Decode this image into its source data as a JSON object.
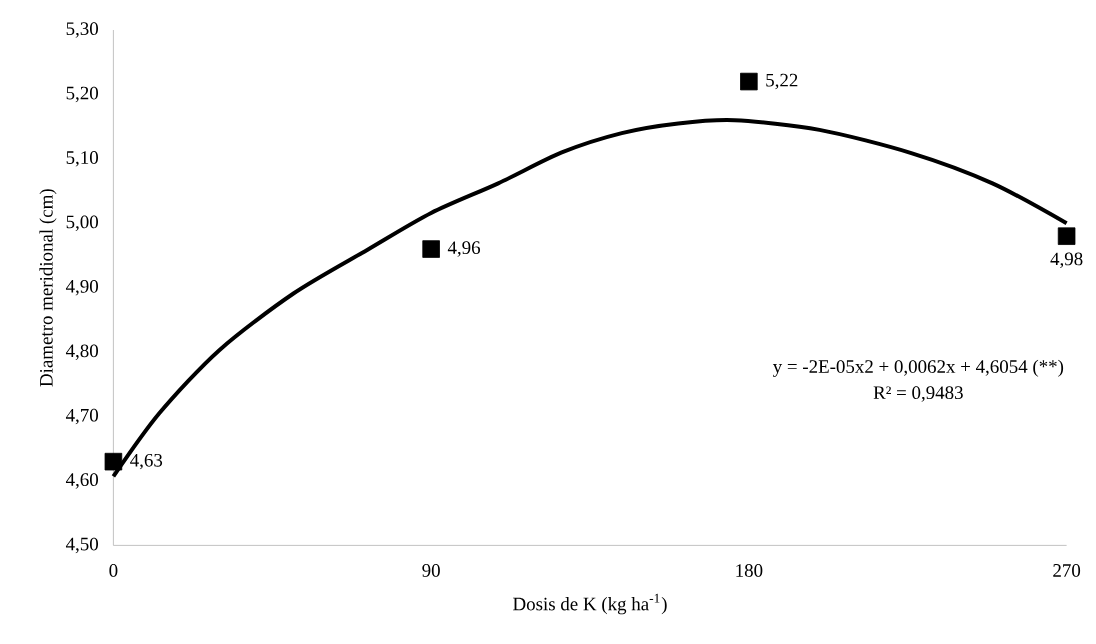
{
  "chart_data": {
    "type": "scatter",
    "xlabel": "Dosis de K (kg ha$^{-1}$)",
    "ylabel": "Diametro meridional (cm)",
    "xlim": [
      0,
      270
    ],
    "xticks": [
      0,
      90,
      180,
      270
    ],
    "ylim": [
      4.5,
      5.3
    ],
    "yticks": [
      {
        "value": 4.5,
        "label": "4,50"
      },
      {
        "value": 4.6,
        "label": "4,60"
      },
      {
        "value": 4.7,
        "label": "4,70"
      },
      {
        "value": 4.8,
        "label": "4,80"
      },
      {
        "value": 4.9,
        "label": "4,90"
      },
      {
        "value": 5.0,
        "label": "5,00"
      },
      {
        "value": 5.1,
        "label": "5,10"
      },
      {
        "value": 5.2,
        "label": "5,20"
      },
      {
        "value": 5.3,
        "label": "5,30"
      }
    ],
    "grid": false,
    "series": [
      {
        "marker": "square",
        "color": "#000000",
        "x": [
          0,
          90,
          180,
          270
        ],
        "values": [
          4.63,
          4.96,
          5.22,
          4.98
        ],
        "value_labels": [
          "4,63",
          "4,96",
          "5,22",
          "4,98"
        ]
      },
      {
        "type": "line",
        "marker": "none",
        "line_style": "solid",
        "color": "#000000",
        "x": [
          0,
          13,
          30,
          51,
          72,
          90,
          109,
          127,
          144,
          160,
          176,
          200,
          226,
          249,
          270
        ],
        "values": [
          4.607,
          4.705,
          4.803,
          4.891,
          4.959,
          5.016,
          5.062,
          5.11,
          5.14,
          5.155,
          5.16,
          5.145,
          5.109,
          5.062,
          5.0
        ]
      }
    ],
    "annotations": [
      "y = -2E-05x2 + 0,0062x + 4,6054 (**)",
      "R² = 0,9483"
    ]
  }
}
